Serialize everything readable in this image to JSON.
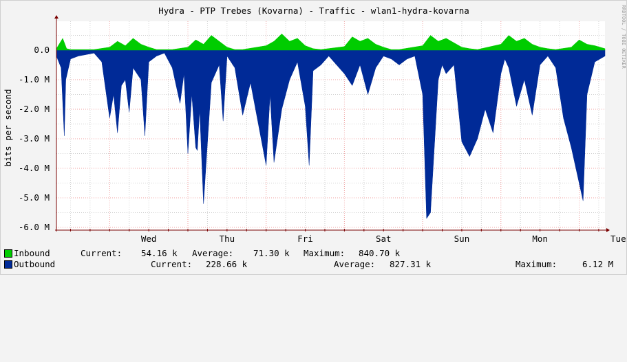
{
  "chart_data": {
    "type": "area",
    "title": "Hydra - PTP Trebes (Kovarna) - Traffic - wlan1-hydra-kovarna",
    "ylabel": "bits per second",
    "xlabel": "",
    "watermark": "RRDTOOL / TOBI OETIKER",
    "ylim": [
      -6.0,
      0.8
    ],
    "y_ticks": [
      {
        "value": 0.0,
        "label": "0.0"
      },
      {
        "value": -1.0,
        "label": "-1.0 M"
      },
      {
        "value": -2.0,
        "label": "-2.0 M"
      },
      {
        "value": -3.0,
        "label": "-3.0 M"
      },
      {
        "value": -4.0,
        "label": "-4.0 M"
      },
      {
        "value": -5.0,
        "label": "-5.0 M"
      },
      {
        "value": -6.0,
        "label": "-6.0 M"
      }
    ],
    "x_days": [
      "Wed",
      "Thu",
      "Fri",
      "Sat",
      "Sun",
      "Mon",
      "Tue"
    ],
    "x_range_days": [
      -0.68,
      6.33
    ],
    "grid": true,
    "colors": {
      "inbound": "#00cc00",
      "outbound": "#002a97",
      "grid_major": "#f0a0a0",
      "grid_minor": "#d0d0d0",
      "axis": "#7a0000"
    },
    "series": [
      {
        "name": "Inbound",
        "unit": "Mbit/s",
        "x_days": [
          -0.68,
          -0.6,
          -0.55,
          -0.5,
          -0.4,
          -0.2,
          0.0,
          0.1,
          0.2,
          0.3,
          0.4,
          0.5,
          0.6,
          0.7,
          0.8,
          1.0,
          1.1,
          1.2,
          1.3,
          1.4,
          1.5,
          1.6,
          1.7,
          2.0,
          2.1,
          2.2,
          2.3,
          2.4,
          2.5,
          2.6,
          2.7,
          3.0,
          3.1,
          3.2,
          3.3,
          3.4,
          3.5,
          3.6,
          3.7,
          4.0,
          4.1,
          4.2,
          4.3,
          4.4,
          4.5,
          4.6,
          4.7,
          5.0,
          5.1,
          5.2,
          5.3,
          5.4,
          5.5,
          5.6,
          5.7,
          5.9,
          6.0,
          6.1,
          6.2,
          6.33
        ],
        "values": [
          0.05,
          0.4,
          0.05,
          0.02,
          0.02,
          0.02,
          0.1,
          0.3,
          0.15,
          0.4,
          0.2,
          0.1,
          0.02,
          0.02,
          0.02,
          0.1,
          0.35,
          0.2,
          0.5,
          0.3,
          0.1,
          0.02,
          0.02,
          0.15,
          0.3,
          0.55,
          0.3,
          0.4,
          0.15,
          0.05,
          0.02,
          0.12,
          0.45,
          0.3,
          0.4,
          0.2,
          0.1,
          0.02,
          0.02,
          0.15,
          0.5,
          0.3,
          0.4,
          0.25,
          0.1,
          0.05,
          0.02,
          0.2,
          0.5,
          0.3,
          0.4,
          0.2,
          0.1,
          0.05,
          0.02,
          0.1,
          0.35,
          0.2,
          0.15,
          0.05
        ]
      },
      {
        "name": "Outbound",
        "unit": "Mbit/s",
        "x_days": [
          -0.68,
          -0.62,
          -0.58,
          -0.56,
          -0.5,
          -0.4,
          -0.2,
          -0.1,
          0.0,
          0.05,
          0.1,
          0.15,
          0.2,
          0.25,
          0.3,
          0.4,
          0.45,
          0.5,
          0.6,
          0.7,
          0.8,
          0.9,
          0.95,
          1.0,
          1.05,
          1.1,
          1.12,
          1.15,
          1.2,
          1.3,
          1.4,
          1.45,
          1.5,
          1.6,
          1.7,
          1.8,
          2.0,
          2.05,
          2.1,
          2.2,
          2.3,
          2.4,
          2.5,
          2.55,
          2.6,
          2.7,
          2.8,
          3.0,
          3.1,
          3.2,
          3.3,
          3.4,
          3.5,
          3.6,
          3.7,
          3.8,
          3.9,
          4.0,
          4.05,
          4.1,
          4.2,
          4.25,
          4.3,
          4.4,
          4.5,
          4.6,
          4.7,
          4.8,
          4.9,
          5.0,
          5.05,
          5.1,
          5.2,
          5.3,
          5.4,
          5.5,
          5.6,
          5.7,
          5.8,
          5.9,
          6.0,
          6.05,
          6.1,
          6.2,
          6.33
        ],
        "values": [
          -0.2,
          -0.6,
          -2.9,
          -1.0,
          -0.3,
          -0.2,
          -0.1,
          -0.4,
          -2.3,
          -1.5,
          -2.8,
          -1.2,
          -1.0,
          -2.1,
          -0.6,
          -1.0,
          -2.9,
          -0.4,
          -0.2,
          -0.1,
          -0.6,
          -1.8,
          -0.8,
          -3.5,
          -1.5,
          -3.3,
          -3.4,
          -2.0,
          -5.2,
          -1.1,
          -0.5,
          -2.4,
          -0.2,
          -0.6,
          -2.2,
          -1.1,
          -3.9,
          -1.5,
          -3.8,
          -2.0,
          -1.0,
          -0.4,
          -1.9,
          -3.9,
          -0.7,
          -0.5,
          -0.2,
          -0.8,
          -1.2,
          -0.5,
          -1.5,
          -0.6,
          -0.2,
          -0.3,
          -0.5,
          -0.3,
          -0.2,
          -1.5,
          -5.7,
          -5.5,
          -1.0,
          -0.5,
          -0.8,
          -0.5,
          -3.1,
          -3.6,
          -3.0,
          -2.0,
          -2.8,
          -0.8,
          -0.3,
          -0.6,
          -1.9,
          -1.0,
          -2.2,
          -0.5,
          -0.2,
          -0.6,
          -2.3,
          -3.3,
          -4.5,
          -5.1,
          -1.5,
          -0.4,
          -0.2
        ]
      }
    ]
  },
  "legend": {
    "inbound": {
      "label": "Inbound",
      "current_label": "Current:",
      "current": "54.16 k",
      "average_label": "Average:",
      "average": "71.30 k",
      "maximum_label": "Maximum:",
      "maximum": "840.70 k"
    },
    "outbound": {
      "label": "Outbound",
      "current_label": "Current:",
      "current": "228.66 k",
      "average_label": "Average:",
      "average": "827.31 k",
      "maximum_label": "Maximum:",
      "maximum": "6.12 M"
    }
  }
}
